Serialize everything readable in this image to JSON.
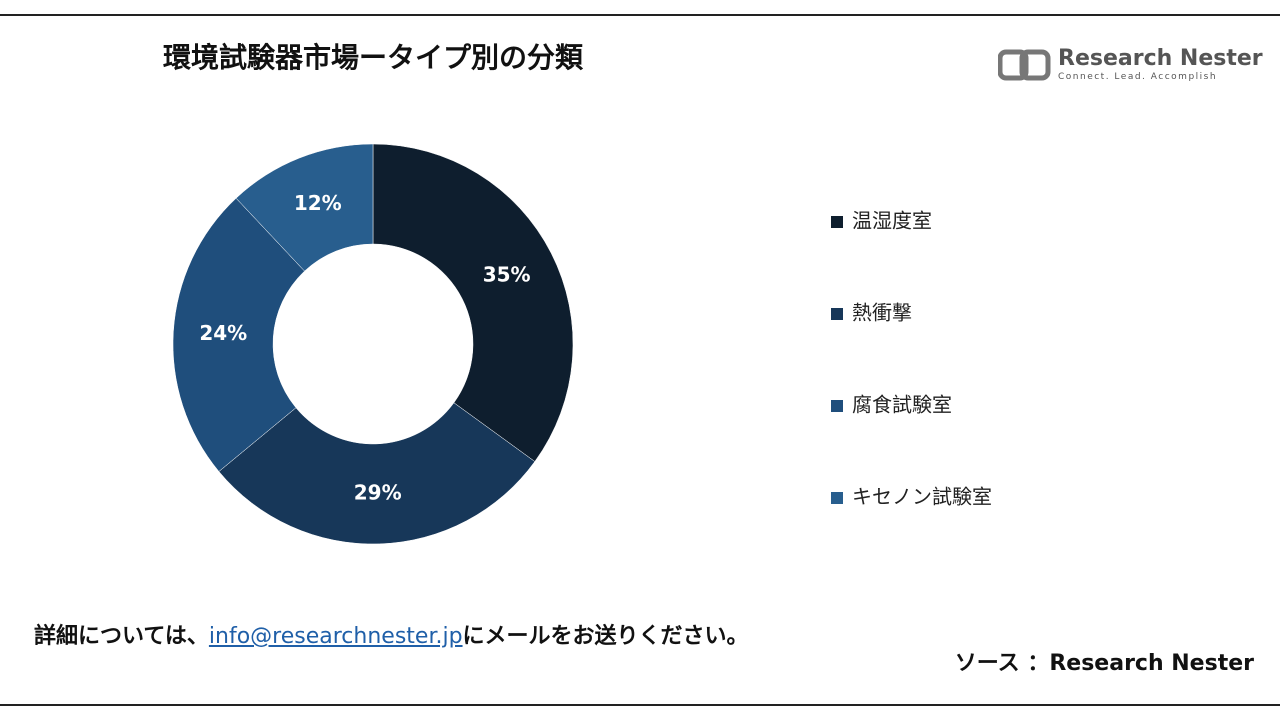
{
  "chart_data": {
    "type": "pie",
    "title": "環境試験器市場ータイプ別の分類",
    "categories": [
      "温湿度室",
      "熱衝撃",
      "腐食試験室",
      "キセノン試験室"
    ],
    "values": [
      35,
      29,
      24,
      12
    ],
    "value_labels": [
      "35%",
      "29%",
      "24%",
      "12%"
    ],
    "colors": [
      "#0e1e2e",
      "#173759",
      "#1f4e7c",
      "#285e8e"
    ],
    "donut": true,
    "legend": "right"
  },
  "logo": {
    "name": "Research Nester",
    "tagline": "Connect. Lead. Accomplish"
  },
  "note": {
    "before": "詳細については、",
    "email": "info@researchnester.jp",
    "after": "にメールをお送りください。"
  },
  "source": "ソース ：Research Nester"
}
